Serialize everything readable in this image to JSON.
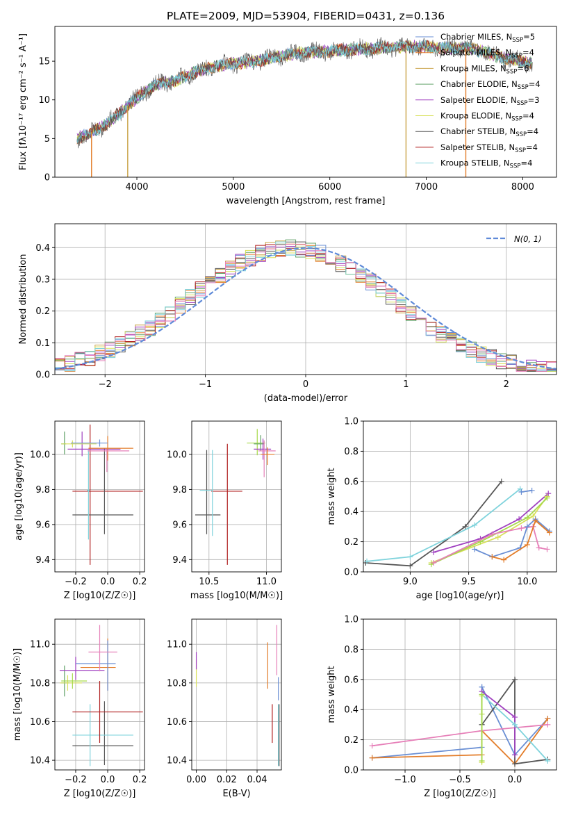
{
  "figure": {
    "title": "PLATE=2009, MJD=53904, FIBERID=0431, z=0.136"
  },
  "colors": {
    "Chabrier MILES": "#6a8fd4",
    "Salpeter MILES": "#e37d2a",
    "Kroupa MILES": "#c9a247",
    "Chabrier ELODIE": "#63a36b",
    "Salpeter ELODIE": "#a040c0",
    "Kroupa ELODIE": "#d8e05a",
    "Chabrier STELIB": "#555555",
    "Salpeter STELIB": "#b01e1e",
    "Kroupa STELIB": "#7fd3dc",
    "Pink": "#e67fb8",
    "Lime": "#a6d94a",
    "Normal": "#5f8ad8"
  },
  "chart_data": [
    {
      "id": "spectrum",
      "type": "line",
      "xlabel": "wavelength [Angstrom, rest frame]",
      "ylabel": "Flux [fλ10⁻¹⁷ erg cm⁻² s⁻¹ A⁻¹]",
      "xlim": [
        3150,
        8350
      ],
      "ylim": [
        0,
        19.5
      ],
      "xticks": [
        4000,
        5000,
        6000,
        7000,
        8000
      ],
      "yticks": [
        0,
        5,
        10,
        15
      ],
      "grid": false,
      "legend": "right",
      "series": [
        {
          "name": "Chabrier MILES, N",
          "sub": "SSP",
          "suffix": "=5",
          "color": "Chabrier MILES"
        },
        {
          "name": "Salpeter MILES, N",
          "sub": "SSP",
          "suffix": "=4",
          "color": "Salpeter MILES"
        },
        {
          "name": "Kroupa MILES, N",
          "sub": "SSP",
          "suffix": "=6",
          "color": "Kroupa MILES"
        },
        {
          "name": "Chabrier ELODIE, N",
          "sub": "SSP",
          "suffix": "=4",
          "color": "Chabrier ELODIE"
        },
        {
          "name": "Salpeter ELODIE, N",
          "sub": "SSP",
          "suffix": "=3",
          "color": "Salpeter ELODIE"
        },
        {
          "name": "Kroupa ELODIE, N",
          "sub": "SSP",
          "suffix": "=4",
          "color": "Kroupa ELODIE"
        },
        {
          "name": "Chabrier STELIB, N",
          "sub": "SSP",
          "suffix": "=4",
          "color": "Chabrier STELIB"
        },
        {
          "name": "Salpeter STELIB, N",
          "sub": "SSP",
          "suffix": "=4",
          "color": "Salpeter STELIB"
        },
        {
          "name": "Kroupa STELIB, N",
          "sub": "SSP",
          "suffix": "=4",
          "color": "Kroupa STELIB"
        }
      ],
      "envelope": {
        "x": [
          3380,
          3500,
          3600,
          3700,
          3800,
          3900,
          4000,
          4100,
          4200,
          4300,
          4400,
          4600,
          4800,
          5000,
          5200,
          5400,
          5600,
          5800,
          6000,
          6200,
          6400,
          6600,
          6800,
          7000,
          7200,
          7400,
          7600,
          7800,
          8000,
          8100
        ],
        "y": [
          5.0,
          5.6,
          6.3,
          7.0,
          8.1,
          9.2,
          10.3,
          11.2,
          11.9,
          12.3,
          12.4,
          13.6,
          14.3,
          14.7,
          14.9,
          15.4,
          15.9,
          16.2,
          16.3,
          16.5,
          16.6,
          16.8,
          16.9,
          16.9,
          16.7,
          16.8,
          16.2,
          15.4,
          14.9,
          14.7
        ]
      },
      "dips": [
        {
          "x": 3530,
          "color": "Salpeter MILES"
        },
        {
          "x": 3905,
          "color": "Kroupa MILES"
        },
        {
          "x": 6790,
          "color": "Kroupa MILES"
        },
        {
          "x": 7410,
          "color": "Salpeter MILES"
        }
      ]
    },
    {
      "id": "residuals",
      "type": "line",
      "xlabel": "(data-model)/error",
      "ylabel": "Normed distribution",
      "xlim": [
        -2.5,
        2.5
      ],
      "ylim": [
        0,
        0.475
      ],
      "xticks": [
        -2,
        -1,
        0,
        1,
        2
      ],
      "yticks": [
        0.0,
        0.1,
        0.2,
        0.3,
        0.4
      ],
      "grid": true,
      "legend": "top-right",
      "series": [
        {
          "name": "N(0, 1)",
          "color": "Normal",
          "style": "dashed"
        }
      ],
      "bin_width": 0.1
    },
    {
      "id": "age-vs-Z",
      "type": "scatter",
      "xlabel": "Z [log10(Z/Z☉)]",
      "ylabel": "age  [log10(age/yr)]",
      "xlim": [
        -0.33,
        0.23
      ],
      "ylim": [
        9.33,
        10.19
      ],
      "xticks": [
        -0.2,
        0.0,
        0.2
      ],
      "yticks": [
        9.4,
        9.6,
        9.8,
        10.0
      ],
      "grid": true,
      "errorbars": [
        {
          "x": -0.11,
          "y": 9.79,
          "xerr": [
            0.11,
            0.33
          ],
          "yerr": [
            0.42,
            0.38
          ],
          "color": "Salpeter STELIB"
        },
        {
          "x": -0.02,
          "y": 9.655,
          "xerr": [
            0.2,
            0.18
          ],
          "yerr": [
            0.11,
            0.38
          ],
          "color": "Chabrier STELIB"
        },
        {
          "x": -0.12,
          "y": 9.795,
          "xerr": [
            0.01,
            0.01
          ],
          "yerr": [
            0.28,
            0.23
          ],
          "color": "Kroupa STELIB"
        },
        {
          "x": -0.16,
          "y": 10.03,
          "xerr": [
            0.09,
            0.24
          ],
          "yerr": [
            0.04,
            0.1
          ],
          "color": "Salpeter ELODIE"
        },
        {
          "x": -0.27,
          "y": 10.06,
          "xerr": [
            0.02,
            0.01
          ],
          "yerr": [
            0.06,
            0.07
          ],
          "color": "Chabrier ELODIE"
        },
        {
          "x": -0.22,
          "y": 10.06,
          "xerr": [
            0.07,
            0.15
          ],
          "yerr": [
            0.02,
            0.02
          ],
          "color": "Kroupa ELODIE"
        },
        {
          "x": 0.0,
          "y": 10.035,
          "xerr": [
            0.12,
            0.16
          ],
          "yerr": [
            0.07,
            0.07
          ],
          "color": "Salpeter MILES"
        },
        {
          "x": -0.005,
          "y": 10.02,
          "xerr": [
            0.12,
            0.14
          ],
          "yerr": [
            0.12,
            0.01
          ],
          "color": "Pink"
        },
        {
          "x": -0.05,
          "y": 10.065,
          "xerr": [
            0.18,
            0.05
          ],
          "yerr": [
            0.02,
            0.02
          ],
          "color": "Chabrier MILES"
        }
      ]
    },
    {
      "id": "age-vs-mass",
      "type": "scatter",
      "xlabel": "mass [log10(M/M☉)]",
      "ylabel": "",
      "xlim": [
        10.35,
        11.13
      ],
      "ylim": [
        9.33,
        10.19
      ],
      "xticks": [
        10.5,
        11.0
      ],
      "yticks": [
        9.4,
        9.6,
        9.8,
        10.0
      ],
      "grid": true,
      "errorbars": [
        {
          "x": 10.48,
          "y": 9.655,
          "xerr": [
            0.1,
            0.12
          ],
          "yerr": [
            0.11,
            0.37
          ],
          "color": "Chabrier STELIB"
        },
        {
          "x": 10.66,
          "y": 9.79,
          "xerr": [
            0.14,
            0.13
          ],
          "yerr": [
            0.42,
            0.27
          ],
          "color": "Salpeter STELIB"
        },
        {
          "x": 10.53,
          "y": 9.795,
          "xerr": [
            0.11,
            0.0
          ],
          "yerr": [
            0.26,
            0.23
          ],
          "color": "Kroupa STELIB"
        },
        {
          "x": 10.92,
          "y": 10.065,
          "xerr": [
            0.09,
            0.07
          ],
          "yerr": [
            0.07,
            0.08
          ],
          "color": "Lime"
        },
        {
          "x": 10.95,
          "y": 10.06,
          "xerr": [
            0.06,
            0.03
          ],
          "yerr": [
            0.04,
            0.05
          ],
          "color": "Chabrier ELODIE"
        },
        {
          "x": 10.97,
          "y": 10.03,
          "xerr": [
            0.08,
            0.07
          ],
          "yerr": [
            0.06,
            0.06
          ],
          "color": "Salpeter ELODIE"
        },
        {
          "x": 10.98,
          "y": 10.02,
          "xerr": [
            0.05,
            0.1
          ],
          "yerr": [
            0.15,
            0.06
          ],
          "color": "Pink"
        },
        {
          "x": 11.01,
          "y": 10.0,
          "xerr": [
            0.06,
            0.06
          ],
          "yerr": [
            0.06,
            0.04
          ],
          "color": "Salpeter MILES"
        }
      ]
    },
    {
      "id": "weight-vs-age",
      "type": "line",
      "xlabel": "age  [log10(age/yr)]",
      "ylabel": "mass weight",
      "xlim": [
        8.6,
        10.25
      ],
      "ylim": [
        0,
        1.0
      ],
      "xticks": [
        9.0,
        9.5,
        10.0
      ],
      "yticks": [
        0.0,
        0.2,
        0.4,
        0.6,
        0.8,
        1.0
      ],
      "grid": true,
      "series": [
        {
          "x": [
            8.62,
            9.0,
            9.47,
            9.78
          ],
          "y": [
            0.06,
            0.04,
            0.3,
            0.6
          ],
          "color": "Chabrier STELIB"
        },
        {
          "x": [
            8.63,
            9.0,
            9.55,
            9.94
          ],
          "y": [
            0.07,
            0.1,
            0.31,
            0.55
          ],
          "color": "Kroupa STELIB"
        },
        {
          "x": [
            9.2,
            9.6,
            9.93,
            10.18
          ],
          "y": [
            0.13,
            0.22,
            0.35,
            0.52
          ],
          "color": "Salpeter ELODIE"
        },
        {
          "x": [
            9.18,
            9.75,
            10.05,
            10.17
          ],
          "y": [
            0.06,
            0.23,
            0.37,
            0.5
          ],
          "color": "Kroupa ELODIE"
        },
        {
          "x": [
            9.18,
            9.6,
            10.0,
            10.17
          ],
          "y": [
            0.05,
            0.2,
            0.36,
            0.49
          ],
          "color": "Lime"
        },
        {
          "x": [
            9.2,
            9.7,
            9.95,
            10.05
          ],
          "y": [
            0.06,
            0.25,
            0.29,
            0.3
          ],
          "color": "Pink"
        },
        {
          "x": [
            10.05,
            10.1,
            10.17
          ],
          "y": [
            0.3,
            0.16,
            0.15
          ],
          "color": "Pink"
        },
        {
          "x": [
            9.55,
            9.7,
            9.94,
            10.0,
            10.07,
            10.19
          ],
          "y": [
            0.15,
            0.1,
            0.16,
            0.3,
            0.35,
            0.27
          ],
          "color": "Chabrier MILES"
        },
        {
          "x": [
            9.7,
            9.8,
            10.0,
            10.07,
            10.19
          ],
          "y": [
            0.1,
            0.08,
            0.18,
            0.34,
            0.26
          ],
          "color": "Salpeter MILES"
        },
        {
          "x": [
            9.95,
            10.04
          ],
          "y": [
            0.53,
            0.54
          ],
          "color": "Chabrier MILES"
        }
      ]
    },
    {
      "id": "mass-vs-Z",
      "type": "scatter",
      "xlabel": "Z [log10(Z/Z☉)]",
      "ylabel": "mass [log10(M/M☉)]",
      "xlim": [
        -0.33,
        0.23
      ],
      "ylim": [
        10.35,
        11.13
      ],
      "xticks": [
        -0.2,
        0.0,
        0.2
      ],
      "yticks": [
        10.4,
        10.6,
        10.8,
        11.0
      ],
      "grid": true,
      "errorbars": [
        {
          "x": -0.02,
          "y": 10.475,
          "xerr": [
            0.2,
            0.18
          ],
          "yerr": [
            0.1,
            0.23
          ],
          "color": "Chabrier STELIB"
        },
        {
          "x": -0.11,
          "y": 10.53,
          "xerr": [
            0.11,
            0.27
          ],
          "yerr": [
            0.16,
            0.16
          ],
          "color": "Kroupa STELIB"
        },
        {
          "x": -0.05,
          "y": 10.65,
          "xerr": [
            0.17,
            0.27
          ],
          "yerr": [
            0.16,
            0.16
          ],
          "color": "Salpeter STELIB"
        },
        {
          "x": -0.27,
          "y": 10.8,
          "xerr": [
            0.02,
            0.03
          ],
          "yerr": [
            0.07,
            0.09
          ],
          "color": "Chabrier ELODIE"
        },
        {
          "x": -0.25,
          "y": 10.8,
          "xerr": [
            0.05,
            0.09
          ],
          "yerr": [
            0.04,
            0.04
          ],
          "color": "Kroupa ELODIE"
        },
        {
          "x": -0.2,
          "y": 10.865,
          "xerr": [
            0.1,
            0.18
          ],
          "yerr": [
            0.05,
            0.07
          ],
          "color": "Salpeter ELODIE"
        },
        {
          "x": 0.0,
          "y": 10.88,
          "xerr": [
            0.17,
            0.05
          ],
          "yerr": [
            0.12,
            0.15
          ],
          "color": "Salpeter MILES"
        },
        {
          "x": 0.0,
          "y": 10.9,
          "xerr": [
            0.2,
            0.05
          ],
          "yerr": [
            0.14,
            0.12
          ],
          "color": "Chabrier MILES"
        },
        {
          "x": -0.05,
          "y": 10.96,
          "xerr": [
            0.07,
            0.11
          ],
          "yerr": [
            0.1,
            0.14
          ],
          "color": "Pink"
        },
        {
          "x": -0.22,
          "y": 10.81,
          "xerr": [
            0.07,
            0.09
          ],
          "yerr": [
            0.04,
            0.04
          ],
          "color": "Lime"
        }
      ]
    },
    {
      "id": "mass-vs-EBV",
      "type": "scatter",
      "xlabel": "E(B-V)",
      "ylabel": "",
      "xlim": [
        -0.003,
        0.056
      ],
      "ylim": [
        10.35,
        11.13
      ],
      "xticks": [
        0.0,
        0.02,
        0.04
      ],
      "yticks": [
        10.4,
        10.6,
        10.8,
        11.0
      ],
      "grid": true,
      "errorbars": [
        {
          "x": 0.0,
          "y": 10.82,
          "xerr": [
            0,
            0
          ],
          "yerr": [
            0.04,
            0.1
          ],
          "color": "Kroupa ELODIE"
        },
        {
          "x": 0.0,
          "y": 10.9,
          "xerr": [
            0,
            0
          ],
          "yerr": [
            0.03,
            0.06
          ],
          "color": "Salpeter ELODIE"
        },
        {
          "x": 0.047,
          "y": 10.89,
          "xerr": [
            0,
            0
          ],
          "yerr": [
            0.12,
            0.12
          ],
          "color": "Salpeter MILES"
        },
        {
          "x": 0.05,
          "y": 10.59,
          "xerr": [
            0,
            0
          ],
          "yerr": [
            0.1,
            0.1
          ],
          "color": "Salpeter STELIB"
        },
        {
          "x": 0.053,
          "y": 10.96,
          "xerr": [
            0,
            0
          ],
          "yerr": [
            0.12,
            0.14
          ],
          "color": "Pink"
        },
        {
          "x": 0.054,
          "y": 10.77,
          "xerr": [
            0,
            0
          ],
          "yerr": [
            0.06,
            0.06
          ],
          "color": "Chabrier MILES"
        },
        {
          "x": 0.054,
          "y": 10.55,
          "xerr": [
            0,
            0
          ],
          "yerr": [
            0.18,
            0.14
          ],
          "color": "Kroupa STELIB"
        },
        {
          "x": 0.0545,
          "y": 10.53,
          "xerr": [
            0,
            0
          ],
          "yerr": [
            0.16,
            0.16
          ],
          "color": "Chabrier STELIB"
        }
      ]
    },
    {
      "id": "weight-vs-Z",
      "type": "line",
      "xlabel": "Z [log10(Z/Z☉)]",
      "ylabel": "mass weight",
      "xlim": [
        -1.38,
        0.38
      ],
      "ylim": [
        0,
        1.0
      ],
      "xticks": [
        -1.0,
        -0.5,
        0.0
      ],
      "yticks": [
        0.0,
        0.2,
        0.4,
        0.6,
        0.8,
        1.0
      ],
      "grid": true,
      "series": [
        {
          "x": [
            -1.3,
            -0.3,
            -0.3
          ],
          "y": [
            0.08,
            0.15,
            0.55
          ],
          "color": "Chabrier MILES"
        },
        {
          "x": [
            -0.3,
            0.0,
            0.3
          ],
          "y": [
            0.55,
            0.1,
            0.34
          ],
          "color": "Chabrier MILES"
        },
        {
          "x": [
            -1.3,
            -0.3,
            -0.3,
            0.0,
            0.3
          ],
          "y": [
            0.08,
            0.1,
            0.26,
            0.04,
            0.34
          ],
          "color": "Salpeter MILES"
        },
        {
          "x": [
            -1.3,
            -0.3,
            0.3
          ],
          "y": [
            0.16,
            0.26,
            0.3
          ],
          "color": "Pink"
        },
        {
          "x": [
            -0.3,
            -0.3,
            0.0,
            0.0,
            0.3
          ],
          "y": [
            0.3,
            0.3,
            0.6,
            0.04,
            0.07
          ],
          "color": "Chabrier STELIB"
        },
        {
          "x": [
            -0.3,
            0.0,
            0.0
          ],
          "y": [
            0.52,
            0.35,
            0.1
          ],
          "color": "Salpeter ELODIE"
        },
        {
          "x": [
            -0.3,
            -0.3,
            0.0,
            0.3
          ],
          "y": [
            0.37,
            0.5,
            0.3,
            0.06
          ],
          "color": "Kroupa STELIB"
        },
        {
          "x": [
            -0.3,
            -0.3,
            -0.3
          ],
          "y": [
            0.05,
            0.37,
            0.49
          ],
          "color": "Kroupa ELODIE"
        },
        {
          "x": [
            -0.3,
            -0.3
          ],
          "y": [
            0.06,
            0.5
          ],
          "color": "Lime"
        }
      ]
    }
  ]
}
